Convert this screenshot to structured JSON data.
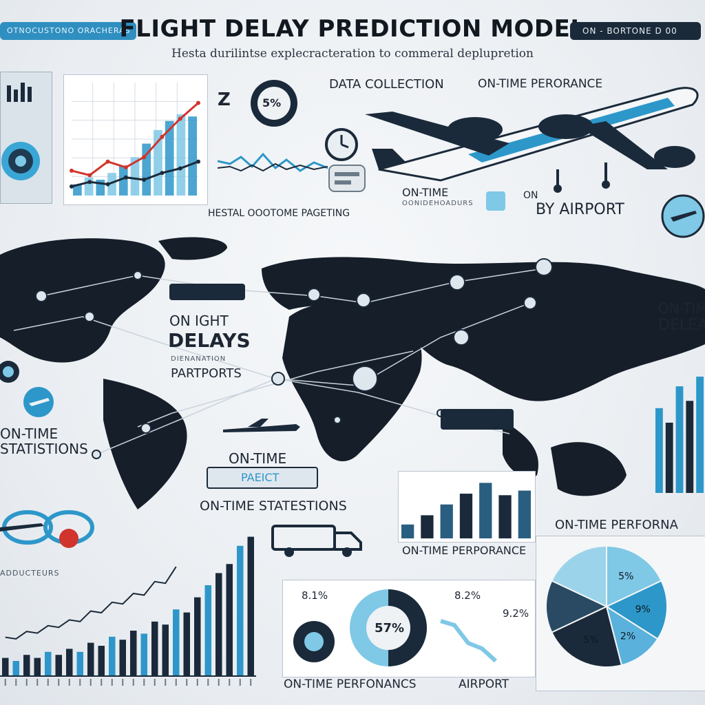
{
  "header": {
    "title": "FLIGHT DELAY PREDICTION MODEL",
    "subtitle": "Hesta durilintse explecracteration to commeral deplupretion",
    "left_badge": "OTNOCUSTONO ORACHERAS",
    "right_badge": "ON - BORTONE D 00"
  },
  "sections": {
    "data_collection": "DATA COLLECTION",
    "on_time_performance_top": "ON-TIME PERORANCE",
    "percent_badge": "5%",
    "historical_label": "HESTAL OOOTOME PAGETING",
    "on_time_mid": "ON-TIME",
    "on_time_mid_sub": "OONIDEHOADURS",
    "on_label": "ON",
    "by_airport": "BY AIRPORT",
    "on_flight_delays_1": "ON IGHT",
    "on_flight_delays_2": "DELAYS",
    "on_flight_delays_3": "DIENANATION",
    "on_flight_delays_4": "PARTPORTS",
    "on_time_right_1": "ON-TIM",
    "on_time_right_2": "DELEA",
    "on_time_statistics_left_1": "ON-TIME",
    "on_time_statistics_left_2": "STATISTIONS",
    "on_time_center": "ON-TIME",
    "on_time_center_badge": "PAEICT",
    "on_time_statestions": "ON-TIME STATESTIONS",
    "on_time_performance_bars": "ON-TIME PERPORANCE",
    "on_time_performance_right": "ON-TIME PERFORNA",
    "on_time_bottom": "ON-TIME PERFONANCS",
    "airport_bottom": "AIRPORT",
    "left_small": "ADDUCTEURS"
  },
  "donut_labels": {
    "left_pct": "8.1%",
    "center_pct": "57%",
    "right_pct_top": "8.2%",
    "right_pct": "9.2%"
  },
  "pie_labels": {
    "a": "5%",
    "b": "9%",
    "c": "2%",
    "d": "5%"
  },
  "colors": {
    "navy": "#1b2a3a",
    "accent": "#2d97c9",
    "light_blue": "#7fc8e6",
    "red": "#d0342c"
  },
  "chart_data": [
    {
      "type": "line",
      "title": "",
      "series": [
        {
          "values": [
            22,
            18,
            30,
            25,
            34,
            52,
            68,
            82
          ]
        },
        {
          "values": [
            8,
            12,
            10,
            16,
            14,
            20,
            24,
            30
          ]
        }
      ],
      "bars": [
        10,
        16,
        14,
        20,
        26,
        34,
        46,
        58,
        66,
        72,
        70
      ],
      "ylim": [
        0,
        100
      ]
    },
    {
      "type": "bar",
      "title": "",
      "values": [
        12,
        10,
        14,
        12,
        16,
        14,
        18,
        16,
        22,
        20,
        26,
        24,
        30,
        28,
        36,
        34,
        44,
        42,
        52,
        60,
        68,
        74,
        86,
        92
      ],
      "ylim": [
        0,
        100
      ]
    },
    {
      "type": "bar",
      "title": "",
      "values": [
        18,
        30,
        44,
        58,
        72,
        56,
        62
      ],
      "ylim": [
        0,
        100
      ]
    },
    {
      "type": "bar",
      "title": "",
      "values": [
        70,
        58,
        88,
        76,
        96
      ],
      "ylim": [
        0,
        100
      ]
    },
    {
      "type": "pie",
      "title": "",
      "values": [
        18,
        16,
        12,
        22,
        14,
        18
      ],
      "labels": [
        "5%",
        "9%",
        "2%",
        "5%",
        "",
        ""
      ]
    }
  ]
}
